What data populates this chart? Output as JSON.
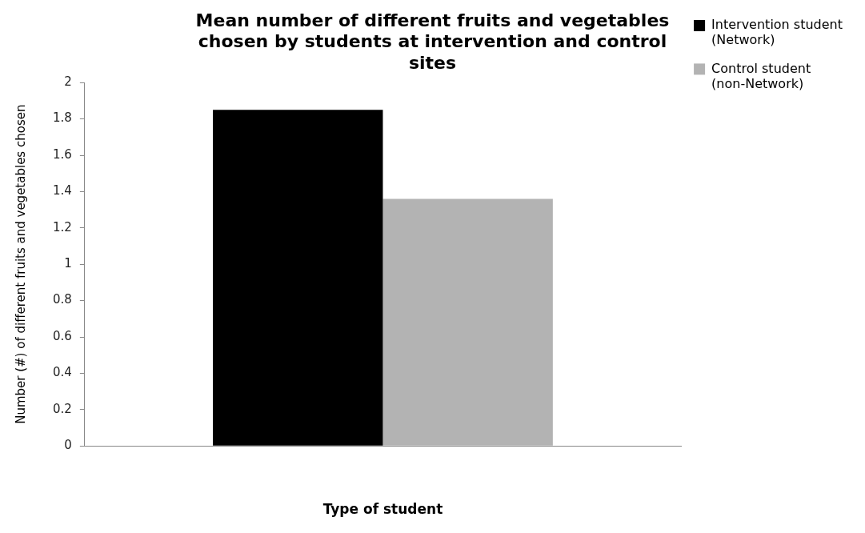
{
  "chart_data": {
    "type": "bar",
    "title": "Mean number of different fruits and vegetables chosen by students at intervention and control sites",
    "xlabel": "Type of student",
    "ylabel": "Number (#) of different fruits and vegetables chosen",
    "categories": [
      null
    ],
    "series": [
      {
        "name": "Intervention student (Network)",
        "color": "#000000",
        "values": [
          1.85
        ]
      },
      {
        "name": "Control student (non-Network)",
        "color": "#b3b3b3",
        "values": [
          1.36
        ]
      }
    ],
    "ylim": [
      0,
      2
    ],
    "yticks": [
      0,
      0.2,
      0.4,
      0.6,
      0.8,
      1,
      1.2,
      1.4,
      1.6,
      1.8,
      2
    ],
    "grid": false,
    "legend": "top right"
  }
}
